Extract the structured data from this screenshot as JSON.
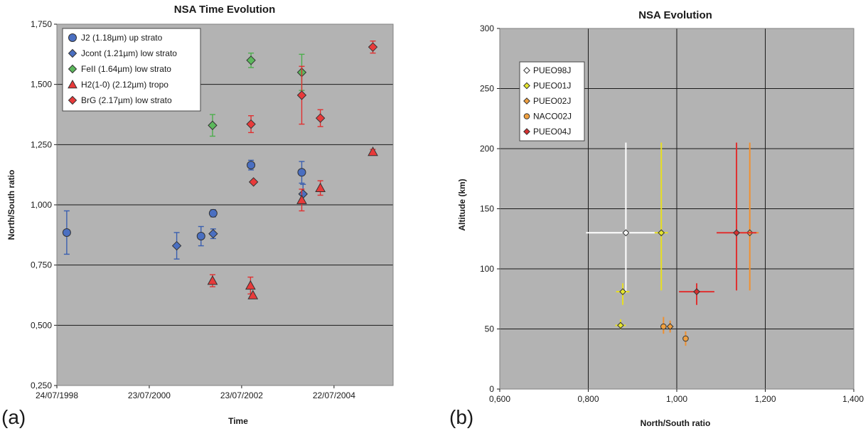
{
  "chart_data": [
    {
      "type": "scatter",
      "panel_label": "(a)",
      "title": "NSA Time Evolution",
      "xlabel": "Time",
      "ylabel": "North/South ratio",
      "x_ticks": [
        "24/07/1998",
        "23/07/2000",
        "23/07/2002",
        "22/07/2004"
      ],
      "xlim": [
        "1998-07-24",
        "2005-11-01"
      ],
      "y_ticks": [
        "0,250",
        "0,500",
        "0,750",
        "1,000",
        "1,250",
        "1,500",
        "1,750"
      ],
      "ylim": [
        0.25,
        1.75
      ],
      "grid": "horizontal",
      "legend_position": "top-left",
      "series": [
        {
          "name": "J2 (1.18µm) up strato",
          "marker": "circle",
          "color": "#4a6fc1",
          "err_color": "#3a5fb0",
          "points": [
            {
              "x": "1998-10-10",
              "y": 0.885,
              "err": 0.09
            },
            {
              "x": "2001-09-05",
              "y": 0.87,
              "err": 0.04
            },
            {
              "x": "2001-12-10",
              "y": 0.965,
              "err": 0.015
            },
            {
              "x": "2002-10-05",
              "y": 1.165,
              "err": 0.02
            },
            {
              "x": "2003-11-10",
              "y": 1.135,
              "err": 0.045
            }
          ]
        },
        {
          "name": "Jcont (1.21µm) low strato",
          "marker": "diamond",
          "color": "#4a6fc1",
          "err_color": "#3a5fb0",
          "points": [
            {
              "x": "2001-02-25",
              "y": 0.83,
              "err": 0.055
            },
            {
              "x": "2001-12-10",
              "y": 0.88,
              "err": 0.02
            },
            {
              "x": "2003-11-20",
              "y": 1.045,
              "err": 0.04
            }
          ]
        },
        {
          "name": "FeII (1.64µm) low strato",
          "marker": "diamond",
          "color": "#5cb85c",
          "err_color": "#4cae4c",
          "points": [
            {
              "x": "2001-12-05",
              "y": 1.33,
              "err": 0.045
            },
            {
              "x": "2002-10-05",
              "y": 1.6,
              "err": 0.03
            },
            {
              "x": "2003-11-10",
              "y": 1.55,
              "err": 0.075
            }
          ]
        },
        {
          "name": "H2(1-0) (2.12µm) tropo",
          "marker": "triangle",
          "color": "#e83a3a",
          "err_color": "#e03030",
          "points": [
            {
              "x": "2001-12-05",
              "y": 0.685,
              "err": 0.025
            },
            {
              "x": "2002-10-01",
              "y": 0.665,
              "err": 0.035
            },
            {
              "x": "2002-10-20",
              "y": 0.625,
              "err": 0.0
            },
            {
              "x": "2003-11-10",
              "y": 1.02,
              "err": 0.045
            },
            {
              "x": "2004-04-05",
              "y": 1.07,
              "err": 0.03
            },
            {
              "x": "2005-05-25",
              "y": 1.22,
              "err": 0.01
            }
          ]
        },
        {
          "name": "BrG (2.17µm) low strato",
          "marker": "diamond",
          "color": "#e83a3a",
          "err_color": "#e03030",
          "points": [
            {
              "x": "2002-10-05",
              "y": 1.335,
              "err": 0.035
            },
            {
              "x": "2002-10-25",
              "y": 1.095,
              "err": 0.0
            },
            {
              "x": "2003-11-10",
              "y": 1.455,
              "err": 0.12
            },
            {
              "x": "2004-04-05",
              "y": 1.36,
              "err": 0.035
            },
            {
              "x": "2005-05-25",
              "y": 1.655,
              "err": 0.025
            }
          ]
        }
      ]
    },
    {
      "type": "scatter",
      "panel_label": "(b)",
      "title": "NSA Evolution",
      "xlabel": "North/South ratio",
      "ylabel": "Altitude (km)",
      "x_ticks": [
        "0,600",
        "0,800",
        "1,000",
        "1,200",
        "1,400"
      ],
      "xlim": [
        0.6,
        1.4
      ],
      "y_ticks": [
        "0",
        "50",
        "100",
        "150",
        "200",
        "250",
        "300"
      ],
      "ylim": [
        0,
        300
      ],
      "grid": "both",
      "legend_position": "top-left",
      "series": [
        {
          "name": "PUEO98J",
          "marker": "diamond",
          "color": "#ffffff",
          "err_color": "#ffffff",
          "points": [
            {
              "x": 0.885,
              "y": 130,
              "xerr": [
                0.09,
                0.07
              ],
              "yerr": [
                50,
                75
              ]
            }
          ]
        },
        {
          "name": "PUEO01J",
          "marker": "diamond",
          "color": "#e6e62e",
          "err_color": "#e8e020",
          "points": [
            {
              "x": 0.965,
              "y": 130,
              "xerr": [
                0.015,
                0.015
              ],
              "yerr": [
                48,
                75
              ]
            },
            {
              "x": 0.878,
              "y": 81,
              "xerr": [
                0.015,
                0.015
              ],
              "yerr": [
                11,
                7
              ]
            },
            {
              "x": 0.873,
              "y": 53,
              "xerr": [
                0.012,
                0.012
              ],
              "yerr": [
                3,
                5
              ]
            }
          ]
        },
        {
          "name": "PUEO02J",
          "marker": "diamond",
          "color": "#f0a040",
          "err_color": "#f09030",
          "points": [
            {
              "x": 1.165,
              "y": 130,
              "xerr": [
                0.02,
                0.02
              ],
              "yerr": [
                48,
                75
              ]
            },
            {
              "x": 0.985,
              "y": 52,
              "xerr": [
                0.0,
                0.0
              ],
              "yerr": [
                5,
                5
              ]
            }
          ]
        },
        {
          "name": "NACO02J",
          "marker": "circle",
          "color": "#f0a040",
          "err_color": "#f09030",
          "points": [
            {
              "x": 0.97,
              "y": 52,
              "xerr": [
                0.0,
                0.0
              ],
              "yerr": [
                6,
                8
              ]
            },
            {
              "x": 1.02,
              "y": 42,
              "xerr": [
                0.0,
                0.0
              ],
              "yerr": [
                6,
                6
              ]
            }
          ]
        },
        {
          "name": "PUEO04J",
          "marker": "diamond",
          "color": "#d63030",
          "err_color": "#e03030",
          "points": [
            {
              "x": 1.135,
              "y": 130,
              "xerr": [
                0.045,
                0.045
              ],
              "yerr": [
                48,
                75
              ]
            },
            {
              "x": 1.045,
              "y": 81,
              "xerr": [
                0.04,
                0.04
              ],
              "yerr": [
                11,
                7
              ]
            }
          ]
        }
      ]
    }
  ]
}
